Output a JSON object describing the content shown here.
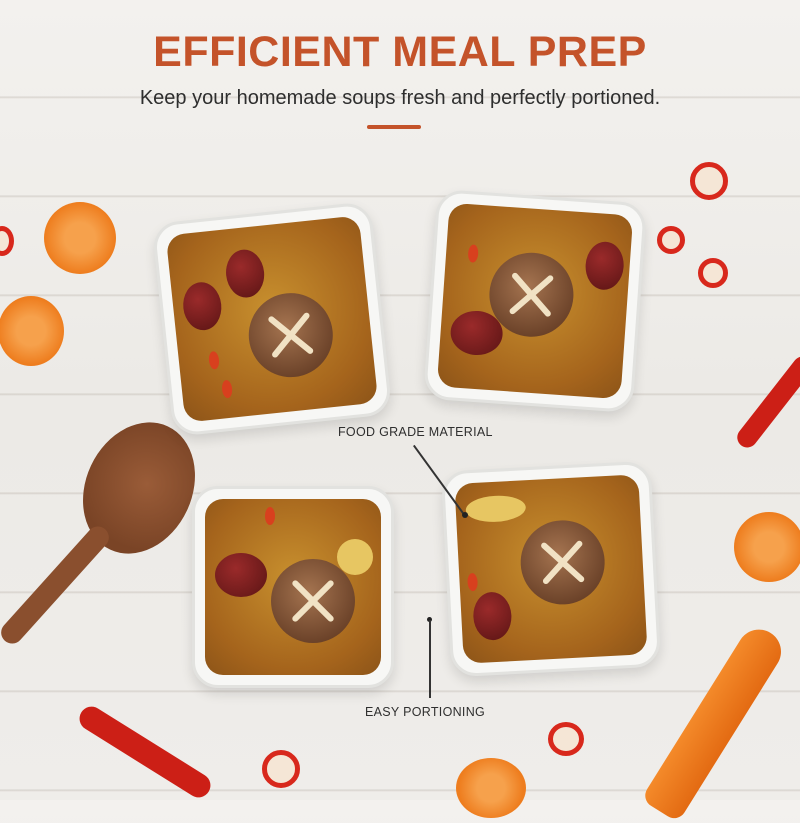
{
  "header": {
    "title": "EFFICIENT MEAL PREP",
    "subtitle": "Keep your homemade soups fresh and perfectly portioned."
  },
  "callouts": {
    "material": "FOOD GRADE MATERIAL",
    "portioning": "EASY PORTIONING"
  },
  "colors": {
    "accent": "#c4532a",
    "text": "#2e2e2e"
  }
}
